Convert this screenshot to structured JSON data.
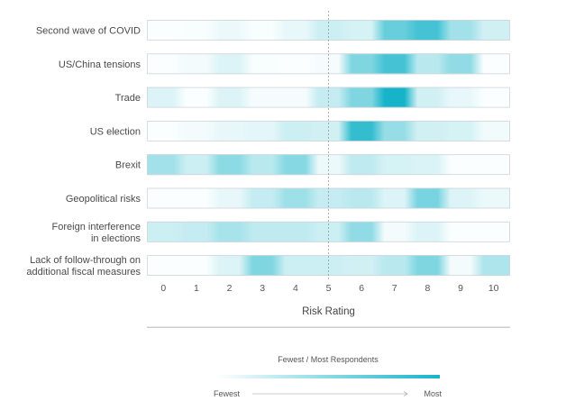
{
  "chart_data": {
    "type": "heatmap",
    "title": "",
    "xlabel": "Risk Rating",
    "ylabel": "",
    "x_ticks": [
      "0",
      "1",
      "2",
      "3",
      "4",
      "5",
      "6",
      "7",
      "8",
      "9",
      "10"
    ],
    "x_range": [
      0,
      10
    ],
    "reference_line_at": 5,
    "value_scale": "relative share of respondents, 0 = fewest, 1 = most",
    "colors": {
      "low": "#ffffff",
      "high": "#17b4c9",
      "border": "#cfd5d9",
      "text": "#4a4a4a"
    },
    "rows": [
      {
        "label": [
          "Second wave of COVID"
        ],
        "values": [
          0.02,
          0.03,
          0.08,
          0.03,
          0.1,
          0.22,
          0.18,
          0.65,
          0.8,
          0.4,
          0.2
        ]
      },
      {
        "label": [
          "US/China tensions"
        ],
        "values": [
          0.02,
          0.05,
          0.15,
          0.03,
          0.02,
          0.04,
          0.55,
          0.8,
          0.3,
          0.48,
          0.02
        ]
      },
      {
        "label": [
          "Trade"
        ],
        "values": [
          0.15,
          0.02,
          0.15,
          0.04,
          0.04,
          0.25,
          0.55,
          1.0,
          0.2,
          0.1,
          0.02
        ]
      },
      {
        "label": [
          "US election"
        ],
        "values": [
          0.02,
          0.05,
          0.1,
          0.12,
          0.22,
          0.2,
          0.88,
          0.45,
          0.2,
          0.18,
          0.06
        ]
      },
      {
        "label": [
          "Brexit"
        ],
        "values": [
          0.4,
          0.22,
          0.5,
          0.3,
          0.52,
          0.08,
          0.28,
          0.18,
          0.16,
          0.02,
          0.02
        ]
      },
      {
        "label": [
          "Geopolitical risks"
        ],
        "values": [
          0.02,
          0.02,
          0.1,
          0.25,
          0.42,
          0.25,
          0.3,
          0.15,
          0.58,
          0.15,
          0.08
        ]
      },
      {
        "label": [
          "Foreign interference",
          "in elections"
        ],
        "values": [
          0.22,
          0.25,
          0.38,
          0.28,
          0.28,
          0.22,
          0.48,
          0.05,
          0.15,
          0.02,
          0.02
        ]
      },
      {
        "label": [
          "Lack of follow-through on",
          "additional fiscal measures"
        ],
        "values": [
          0.02,
          0.02,
          0.15,
          0.55,
          0.22,
          0.22,
          0.2,
          0.3,
          0.55,
          0.05,
          0.35
        ]
      }
    ],
    "legend": {
      "title": "Fewest / Most Respondents",
      "low_label": "Fewest",
      "high_label": "Most"
    }
  }
}
